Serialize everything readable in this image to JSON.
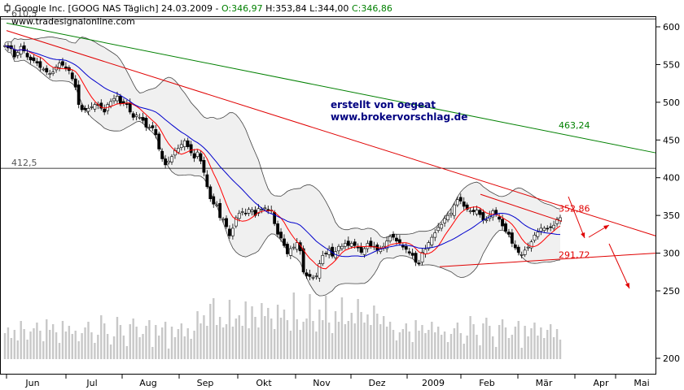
{
  "header": {
    "symbol": "Google Inc. [GOOG NAS  Täglich] 24.03.2009",
    "open": "O:346,97",
    "high": "H:353,84",
    "low": "L:344,00",
    "close": "C:346,86"
  },
  "watermark": "www.tradesignalonline.com",
  "annotations": {
    "line1": "erstellt von oegeat",
    "line2": "www.brokervorschlag.de"
  },
  "colors": {
    "up": "#ffffff",
    "down": "#000000",
    "band_fill": "#f0f0f0",
    "band_line": "#000000",
    "ma_fast": "#ff0000",
    "ma_slow": "#0000cc",
    "trend_red": "#e00000",
    "trend_green": "#008000",
    "volume": "#c8c8c8",
    "grid": "#000000"
  },
  "chart_data": {
    "type": "candlestick",
    "x_labels": [
      "Jun",
      "Jul",
      "Aug",
      "Sep",
      "Okt",
      "Nov",
      "Dez",
      "2009",
      "Feb",
      "Mär",
      "Apr",
      "Mai"
    ],
    "y_ticks": [
      600,
      550,
      500,
      450,
      400,
      350,
      300,
      250
    ],
    "volume_tick": 200,
    "level_labels": [
      {
        "value": 412.5,
        "label": "412,5"
      },
      {
        "value": 610.5,
        "label": "610,5"
      }
    ],
    "trend_labels": [
      {
        "value": 463.24,
        "label": "463,24"
      },
      {
        "value": 352.86,
        "label": "352,86"
      },
      {
        "value": 291.72,
        "label": "291,72"
      }
    ],
    "close": [
      575,
      572,
      571,
      560,
      566,
      574,
      568,
      560,
      556,
      555,
      552,
      546,
      544,
      540,
      538,
      540,
      547,
      552,
      549,
      545,
      542,
      531,
      520,
      497,
      490,
      490,
      492,
      494,
      497,
      496,
      492,
      487,
      497,
      501,
      505,
      508,
      498,
      499,
      497,
      487,
      480,
      483,
      480,
      476,
      467,
      467,
      466,
      457,
      438,
      425,
      417,
      422,
      428,
      436,
      439,
      444,
      449,
      441,
      433,
      426,
      434,
      422,
      407,
      388,
      372,
      365,
      364,
      347,
      345,
      335,
      323,
      333,
      347,
      353,
      355,
      352,
      358,
      357,
      350,
      359,
      358,
      360,
      356,
      357,
      339,
      325,
      320,
      310,
      299,
      306,
      308,
      314,
      303,
      275,
      270,
      269,
      268,
      270,
      286,
      297,
      299,
      306,
      296,
      302,
      309,
      309,
      313,
      310,
      313,
      310,
      307,
      301,
      306,
      313,
      309,
      309,
      304,
      306,
      309,
      316,
      322,
      321,
      316,
      313,
      308,
      305,
      300,
      297,
      288,
      286,
      301,
      305,
      314,
      321,
      327,
      334,
      338,
      346,
      350,
      353,
      364,
      371,
      369,
      362,
      358,
      356,
      355,
      357,
      351,
      344,
      344,
      350,
      356,
      351,
      345,
      336,
      329,
      325,
      313,
      307,
      301,
      298,
      304,
      308,
      315,
      324,
      328,
      333,
      333,
      332,
      334,
      337,
      345,
      347
    ]
  }
}
